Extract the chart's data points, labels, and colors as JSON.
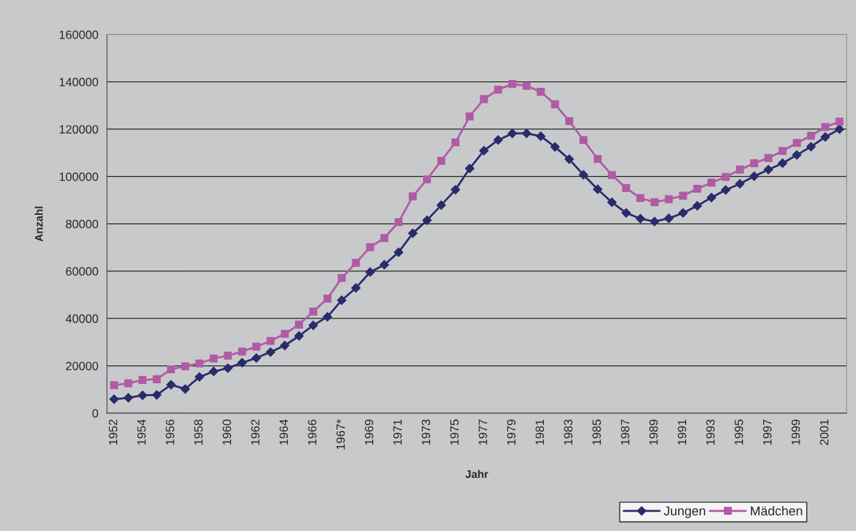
{
  "chart_data": {
    "type": "line",
    "xlabel": "Jahr",
    "ylabel": "Anzahl",
    "categories": [
      "1952",
      null,
      "1954",
      null,
      "1956",
      null,
      "1958",
      null,
      "1960",
      null,
      "1962",
      null,
      "1964",
      null,
      "1966",
      null,
      "1967*",
      null,
      "1969",
      null,
      "1971",
      null,
      "1973",
      null,
      "1975",
      null,
      "1977",
      null,
      "1979",
      null,
      "1981",
      null,
      "1983",
      null,
      "1985",
      null,
      "1987",
      null,
      "1989",
      null,
      "1991",
      null,
      "1993",
      null,
      "1995",
      null,
      "1997",
      null,
      "1999",
      null,
      "2001",
      null
    ],
    "series": [
      {
        "name": "Jungen",
        "color": "#2b2a6b",
        "marker": "diamond",
        "values": [
          5900,
          6500,
          7500,
          7700,
          12000,
          10200,
          15300,
          17600,
          19000,
          21300,
          23300,
          25800,
          28600,
          32600,
          37100,
          40700,
          47700,
          52900,
          59600,
          62700,
          68000,
          76000,
          81500,
          87900,
          94400,
          103400,
          110900,
          115400,
          118200,
          118200,
          117000,
          112500,
          107300,
          100700,
          94600,
          89100,
          84600,
          82200,
          81000,
          82300,
          84600,
          87600,
          91100,
          94300,
          96900,
          100100,
          102900,
          105600,
          109100,
          112600,
          116700,
          120000
        ]
      },
      {
        "name": "Mädchen",
        "color": "#b05ba5",
        "marker": "square",
        "values": [
          11800,
          12600,
          14000,
          14300,
          18500,
          19800,
          21000,
          23100,
          24300,
          26000,
          28100,
          30500,
          33500,
          37400,
          42900,
          48400,
          57100,
          63500,
          70100,
          74000,
          80700,
          91600,
          98800,
          106600,
          114400,
          125400,
          132700,
          136700,
          139100,
          138300,
          135800,
          130500,
          123400,
          115400,
          107400,
          100600,
          95100,
          90900,
          89100,
          90400,
          91900,
          94800,
          97400,
          99800,
          102900,
          105600,
          107800,
          110800,
          114200,
          117200,
          120900,
          123200
        ]
      }
    ],
    "ylim": [
      0,
      160000
    ],
    "yticks": [
      0,
      20000,
      40000,
      60000,
      80000,
      100000,
      120000,
      140000,
      160000
    ],
    "grid": "y",
    "legend": "bottom right",
    "line_style": "solid"
  }
}
